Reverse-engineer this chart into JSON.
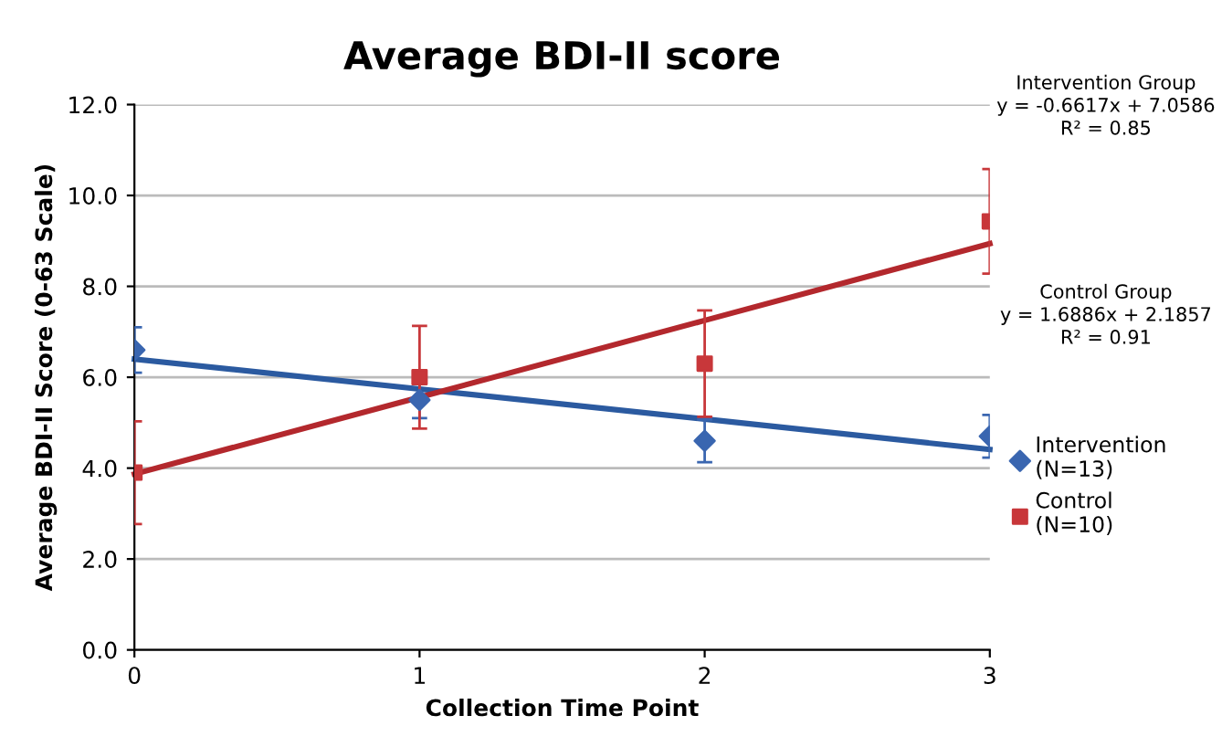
{
  "chart_data": {
    "type": "scatter",
    "title": "Average BDI-II score",
    "xlabel": "Collection Time Point",
    "ylabel": "Average BDI-II Score (0-63 Scale)",
    "x": [
      0,
      1,
      2,
      3
    ],
    "series": [
      {
        "name": "Intervention\n(N=13)",
        "color": "#3a66b0",
        "marker": "diamond",
        "values": [
          6.6,
          5.5,
          4.6,
          4.7
        ],
        "errors": [
          0.5,
          0.4,
          0.47,
          0.47
        ]
      },
      {
        "name": "Control\n(N=10)",
        "color": "#c8373a",
        "marker": "square",
        "values": [
          3.9,
          6.0,
          6.3,
          9.43
        ],
        "errors": [
          1.13,
          1.13,
          1.17,
          1.15
        ]
      },
      {
        "type": "line",
        "color": "#2b5aa0",
        "values": [
          6.4,
          5.74,
          5.08,
          4.41
        ],
        "marker": "none"
      },
      {
        "type": "line",
        "color": "#b3282d",
        "values": [
          3.87,
          5.56,
          7.25,
          8.94
        ],
        "marker": "none"
      }
    ],
    "xlim": [
      0,
      3
    ],
    "xticks": [
      0,
      1,
      2,
      3
    ],
    "ylim": [
      0,
      12
    ],
    "yticks": [
      {
        "value": 0,
        "label": "0.0"
      },
      {
        "value": 2,
        "label": "2.0"
      },
      {
        "value": 4,
        "label": "4.0"
      },
      {
        "value": 6,
        "label": "6.0"
      },
      {
        "value": 8,
        "label": "8.0"
      },
      {
        "value": 10,
        "label": "10.0"
      },
      {
        "value": 12,
        "label": "12.0"
      }
    ],
    "grid": "y",
    "legend": "right",
    "annotations": [
      "Intervention Group\ny = -0.6617x + 7.0586\nR² = 0.85",
      "Control Group\ny = 1.6886x + 2.1857\nR² = 0.91"
    ]
  }
}
